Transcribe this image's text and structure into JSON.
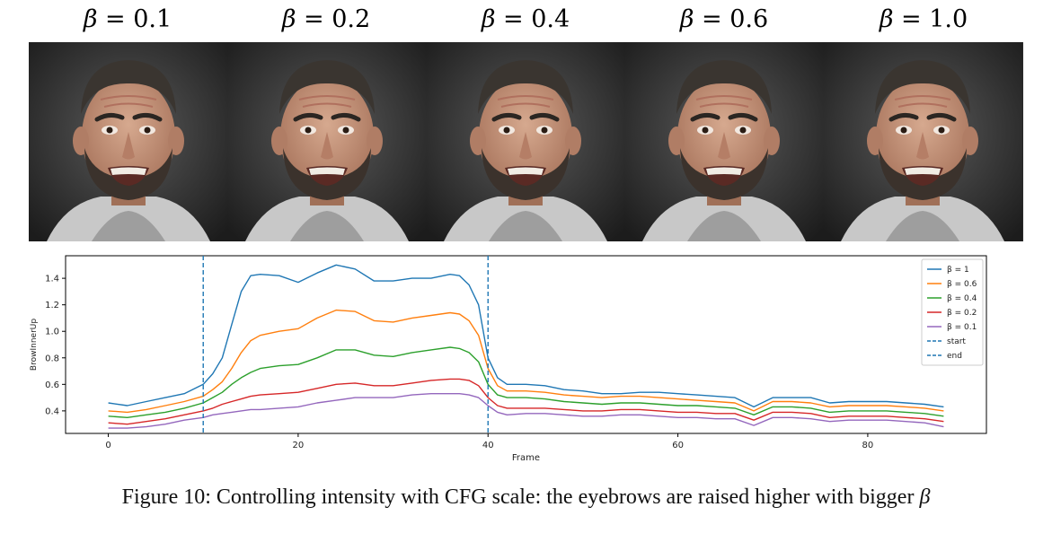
{
  "panels": [
    {
      "beta_symbol": "β",
      "label": " = 0.1"
    },
    {
      "beta_symbol": "β",
      "label": " = 0.2"
    },
    {
      "beta_symbol": "β",
      "label": " = 0.4"
    },
    {
      "beta_symbol": "β",
      "label": " = 0.6"
    },
    {
      "beta_symbol": "β",
      "label": " = 1.0"
    }
  ],
  "caption": {
    "text": "Figure 10: Controlling intensity with CFG scale: the eyebrows are raised higher with bigger ",
    "symbol": "β"
  },
  "chart_data": {
    "type": "line",
    "title": "",
    "xlabel": "Frame",
    "ylabel": "BrowInnerUp",
    "xlim": [
      -4.5,
      92.5
    ],
    "ylim": [
      0.23,
      1.57
    ],
    "xticks": [
      0,
      20,
      40,
      60,
      80
    ],
    "yticks": [
      0.4,
      0.6,
      0.8,
      1.0,
      1.2,
      1.4
    ],
    "ytick_labels": [
      "0.4",
      "0.6",
      "0.8",
      "1.0",
      "1.2",
      "1.4"
    ],
    "grid": false,
    "legend_position": "top-right",
    "x": [
      0,
      2,
      4,
      6,
      8,
      10,
      11,
      12,
      13,
      14,
      15,
      16,
      18,
      20,
      22,
      24,
      26,
      28,
      30,
      32,
      34,
      36,
      37,
      38,
      39,
      40,
      41,
      42,
      44,
      46,
      48,
      50,
      52,
      54,
      56,
      58,
      60,
      62,
      64,
      66,
      68,
      70,
      72,
      74,
      76,
      78,
      80,
      82,
      84,
      86,
      88
    ],
    "series": [
      {
        "name": "β = 1",
        "color": "#1f77b4",
        "values": [
          0.46,
          0.44,
          0.47,
          0.5,
          0.53,
          0.6,
          0.68,
          0.8,
          1.05,
          1.3,
          1.42,
          1.43,
          1.42,
          1.37,
          1.44,
          1.5,
          1.47,
          1.38,
          1.38,
          1.4,
          1.4,
          1.43,
          1.42,
          1.35,
          1.2,
          0.8,
          0.65,
          0.6,
          0.6,
          0.59,
          0.56,
          0.55,
          0.53,
          0.53,
          0.54,
          0.54,
          0.53,
          0.52,
          0.51,
          0.5,
          0.43,
          0.5,
          0.5,
          0.5,
          0.46,
          0.47,
          0.47,
          0.47,
          0.46,
          0.45,
          0.43
        ]
      },
      {
        "name": "β = 0.6",
        "color": "#ff7f0e",
        "values": [
          0.4,
          0.39,
          0.41,
          0.44,
          0.47,
          0.51,
          0.56,
          0.62,
          0.72,
          0.84,
          0.93,
          0.97,
          1.0,
          1.02,
          1.1,
          1.16,
          1.15,
          1.08,
          1.07,
          1.1,
          1.12,
          1.14,
          1.13,
          1.08,
          0.97,
          0.72,
          0.59,
          0.55,
          0.55,
          0.54,
          0.52,
          0.51,
          0.5,
          0.51,
          0.51,
          0.5,
          0.49,
          0.48,
          0.47,
          0.46,
          0.4,
          0.47,
          0.47,
          0.46,
          0.43,
          0.44,
          0.44,
          0.44,
          0.43,
          0.42,
          0.4
        ]
      },
      {
        "name": "β = 0.4",
        "color": "#2ca02c",
        "values": [
          0.36,
          0.35,
          0.37,
          0.39,
          0.42,
          0.46,
          0.5,
          0.54,
          0.6,
          0.65,
          0.69,
          0.72,
          0.74,
          0.75,
          0.8,
          0.86,
          0.86,
          0.82,
          0.81,
          0.84,
          0.86,
          0.88,
          0.87,
          0.84,
          0.77,
          0.6,
          0.52,
          0.5,
          0.5,
          0.49,
          0.47,
          0.46,
          0.45,
          0.46,
          0.46,
          0.45,
          0.44,
          0.44,
          0.43,
          0.42,
          0.37,
          0.43,
          0.43,
          0.42,
          0.39,
          0.4,
          0.4,
          0.4,
          0.39,
          0.38,
          0.36
        ]
      },
      {
        "name": "β = 0.2",
        "color": "#d62728",
        "values": [
          0.31,
          0.3,
          0.32,
          0.34,
          0.37,
          0.4,
          0.42,
          0.45,
          0.47,
          0.49,
          0.51,
          0.52,
          0.53,
          0.54,
          0.57,
          0.6,
          0.61,
          0.59,
          0.59,
          0.61,
          0.63,
          0.64,
          0.64,
          0.63,
          0.59,
          0.5,
          0.44,
          0.42,
          0.42,
          0.42,
          0.41,
          0.4,
          0.4,
          0.41,
          0.41,
          0.4,
          0.39,
          0.39,
          0.38,
          0.38,
          0.33,
          0.39,
          0.39,
          0.38,
          0.35,
          0.36,
          0.36,
          0.36,
          0.35,
          0.34,
          0.32
        ]
      },
      {
        "name": "β = 0.1",
        "color": "#9467bd",
        "values": [
          0.27,
          0.27,
          0.28,
          0.3,
          0.33,
          0.35,
          0.37,
          0.38,
          0.39,
          0.4,
          0.41,
          0.41,
          0.42,
          0.43,
          0.46,
          0.48,
          0.5,
          0.5,
          0.5,
          0.52,
          0.53,
          0.53,
          0.53,
          0.52,
          0.5,
          0.44,
          0.39,
          0.37,
          0.38,
          0.38,
          0.37,
          0.36,
          0.36,
          0.37,
          0.37,
          0.36,
          0.35,
          0.35,
          0.34,
          0.34,
          0.29,
          0.35,
          0.35,
          0.34,
          0.32,
          0.33,
          0.33,
          0.33,
          0.32,
          0.31,
          0.28
        ]
      }
    ],
    "vlines": [
      {
        "name": "start",
        "x": 10,
        "color": "#1f77b4"
      },
      {
        "name": "end",
        "x": 40,
        "color": "#1f77b4"
      }
    ]
  }
}
